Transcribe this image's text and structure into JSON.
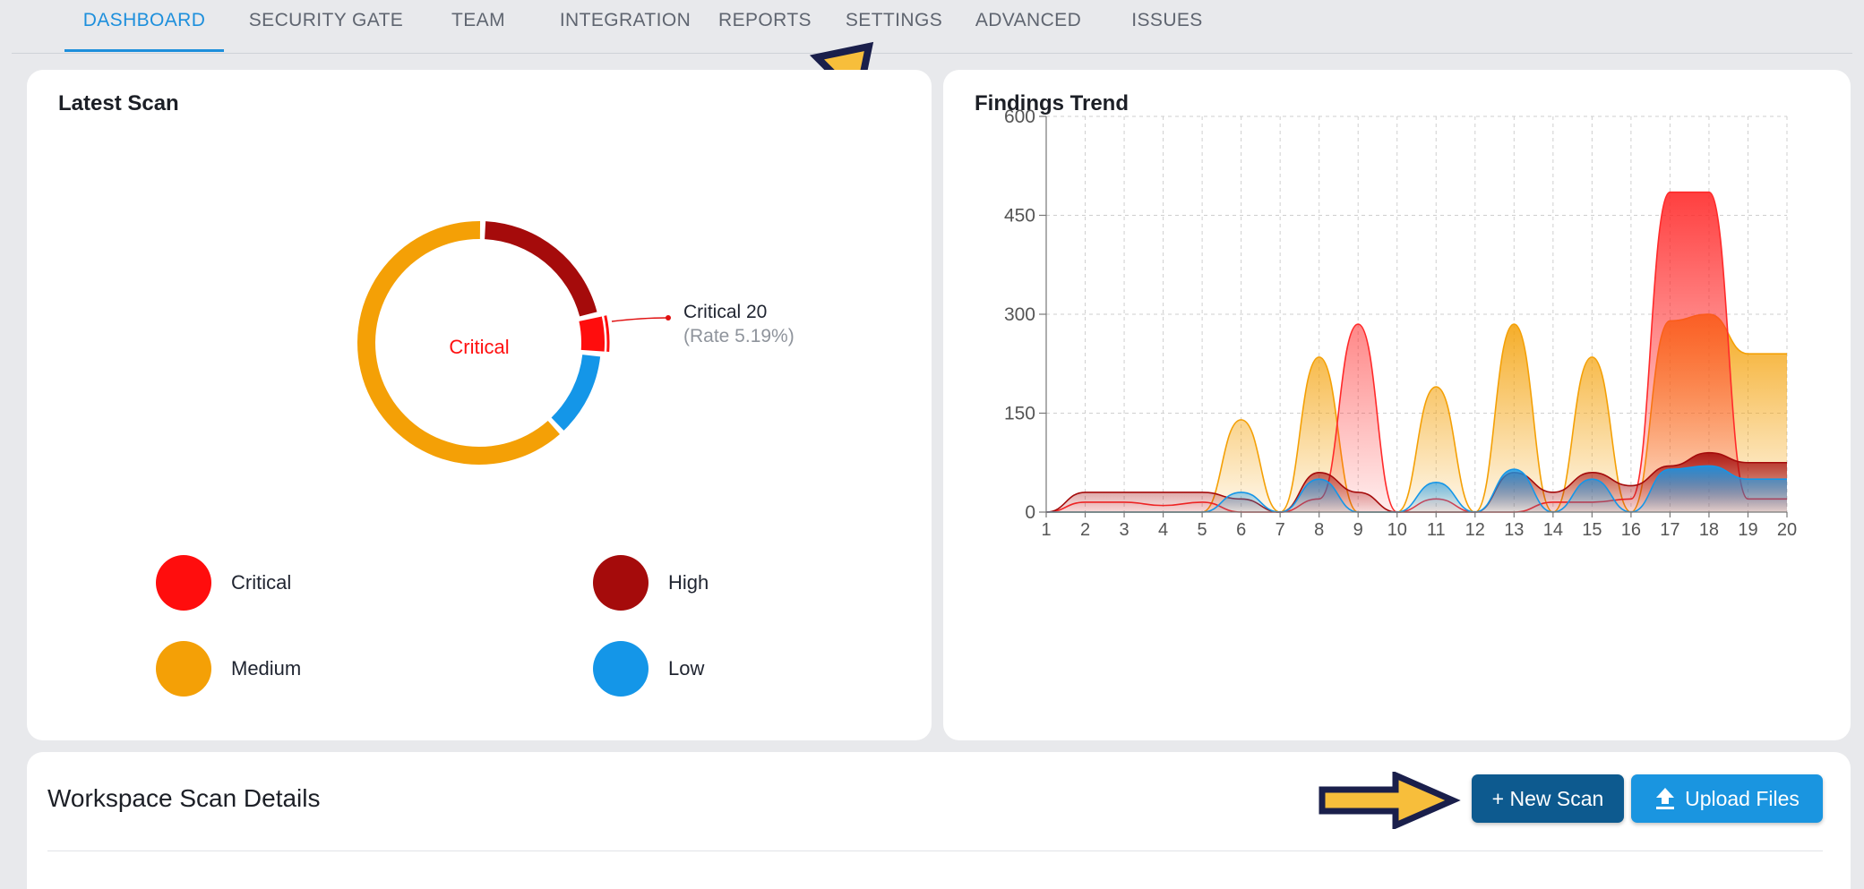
{
  "nav": {
    "tabs": [
      {
        "label": "DASHBOARD",
        "active": true
      },
      {
        "label": "SECURITY GATE",
        "active": false
      },
      {
        "label": "TEAM",
        "active": false
      },
      {
        "label": "INTEGRATION",
        "active": false
      },
      {
        "label": "REPORTS",
        "active": false
      },
      {
        "label": "SETTINGS",
        "active": false
      },
      {
        "label": "ADVANCED",
        "active": false
      },
      {
        "label": "ISSUES",
        "active": false
      }
    ]
  },
  "latest_scan": {
    "title": "Latest Scan",
    "center_label": "Critical",
    "callout_label": "Critical 20",
    "callout_rate": "(Rate 5.19%)",
    "legend": [
      {
        "label": "Critical",
        "color": "#ff0d0d"
      },
      {
        "label": "High",
        "color": "#a50b0b"
      },
      {
        "label": "Medium",
        "color": "#f4a006"
      },
      {
        "label": "Low",
        "color": "#1496e8"
      }
    ]
  },
  "findings_trend": {
    "title": "Findings Trend"
  },
  "chart_data": {
    "type": "area",
    "title": "Findings Trend",
    "x": [
      1,
      2,
      3,
      4,
      5,
      6,
      7,
      8,
      9,
      10,
      11,
      12,
      13,
      14,
      15,
      16,
      17,
      18,
      19,
      20
    ],
    "ylim": [
      0,
      600
    ],
    "yticks": [
      0,
      150,
      300,
      450,
      600
    ],
    "grid": true,
    "series": [
      {
        "color": "#f4a006",
        "values": [
          0,
          0,
          0,
          0,
          0,
          140,
          0,
          235,
          0,
          0,
          190,
          0,
          285,
          0,
          235,
          0,
          290,
          300,
          240,
          240
        ]
      },
      {
        "color": "#ff2a2a",
        "values": [
          0,
          15,
          15,
          10,
          15,
          0,
          0,
          20,
          285,
          0,
          20,
          0,
          0,
          15,
          15,
          20,
          485,
          485,
          20,
          20
        ]
      },
      {
        "color": "#a50b0b",
        "values": [
          0,
          30,
          30,
          30,
          30,
          20,
          0,
          60,
          30,
          0,
          0,
          0,
          60,
          30,
          60,
          40,
          70,
          90,
          75,
          75
        ]
      },
      {
        "color": "#1496e8",
        "values": [
          0,
          0,
          0,
          0,
          0,
          30,
          0,
          50,
          0,
          0,
          45,
          0,
          65,
          0,
          50,
          0,
          65,
          70,
          50,
          50
        ]
      }
    ]
  },
  "donut_data": {
    "type": "pie",
    "slices": [
      {
        "name": "High",
        "value": 80,
        "color": "#a50b0b"
      },
      {
        "name": "Critical",
        "value": 20,
        "color": "#ff0d0d"
      },
      {
        "name": "Low",
        "value": 45,
        "color": "#1496e8"
      },
      {
        "name": "Medium",
        "value": 240,
        "color": "#f4a006"
      }
    ]
  },
  "workspace": {
    "title": "Workspace Scan Details",
    "new_scan_label": "+ New Scan",
    "upload_label": "Upload Files"
  }
}
